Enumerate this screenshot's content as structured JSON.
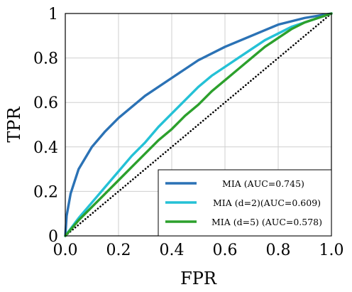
{
  "chart_data": {
    "type": "line",
    "xlabel": "FPR",
    "ylabel": "TPR",
    "xlim": [
      0,
      1
    ],
    "ylim": [
      0,
      1
    ],
    "grid": true,
    "legend_position": "bottom-right",
    "x_ticks": [
      "0.0",
      "0.2",
      "0.4",
      "0.6",
      "0.8",
      "1.0"
    ],
    "y_ticks": [
      "0",
      "0.2",
      "0.4",
      "0.6",
      "0.8",
      "1"
    ],
    "series": [
      {
        "name": "MIA (AUC=0.745)",
        "color": "#2b72b5",
        "x": [
          0,
          0.005,
          0.02,
          0.05,
          0.1,
          0.15,
          0.2,
          0.3,
          0.4,
          0.5,
          0.6,
          0.7,
          0.8,
          0.9,
          0.95,
          1.0
        ],
        "y": [
          0,
          0.09,
          0.19,
          0.3,
          0.4,
          0.47,
          0.53,
          0.63,
          0.71,
          0.79,
          0.85,
          0.9,
          0.95,
          0.98,
          0.99,
          1.0
        ]
      },
      {
        "name": "MIA (d=2)(AUC=0.609)",
        "color": "#24c1d6",
        "x": [
          0,
          0.05,
          0.1,
          0.15,
          0.2,
          0.25,
          0.3,
          0.35,
          0.4,
          0.45,
          0.5,
          0.55,
          0.6,
          0.65,
          0.7,
          0.75,
          0.8,
          0.85,
          0.9,
          0.95,
          1.0
        ],
        "y": [
          0,
          0.08,
          0.15,
          0.22,
          0.29,
          0.36,
          0.42,
          0.49,
          0.55,
          0.61,
          0.67,
          0.72,
          0.76,
          0.8,
          0.84,
          0.88,
          0.91,
          0.94,
          0.96,
          0.98,
          1.0
        ]
      },
      {
        "name": "MIA (d=5) (AUC=0.578)",
        "color": "#2ca02c",
        "x": [
          0,
          0.05,
          0.1,
          0.15,
          0.2,
          0.25,
          0.3,
          0.35,
          0.4,
          0.45,
          0.5,
          0.55,
          0.6,
          0.65,
          0.7,
          0.75,
          0.8,
          0.85,
          0.9,
          0.95,
          1.0
        ],
        "y": [
          0,
          0.07,
          0.13,
          0.19,
          0.25,
          0.31,
          0.37,
          0.43,
          0.48,
          0.54,
          0.59,
          0.65,
          0.7,
          0.75,
          0.8,
          0.85,
          0.89,
          0.93,
          0.96,
          0.98,
          1.0
        ]
      },
      {
        "name": "",
        "color": "#000000",
        "style": "dotted",
        "x": [
          0,
          1
        ],
        "y": [
          0,
          1
        ]
      }
    ]
  }
}
